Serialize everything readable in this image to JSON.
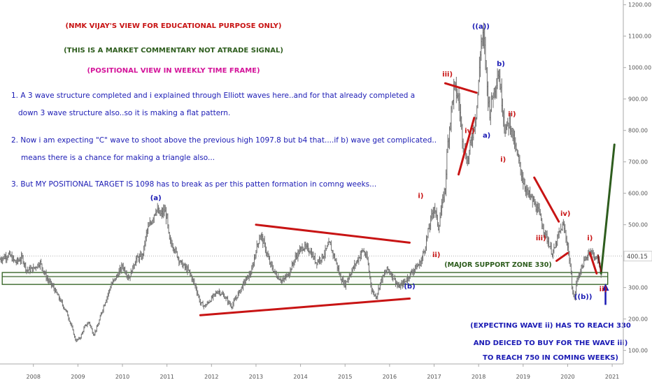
{
  "chart_data": {
    "type": "line",
    "y_axis": {
      "side": "right",
      "ticks": [
        100,
        200,
        300,
        400,
        500,
        600,
        700,
        800,
        900,
        1000,
        1100,
        1200
      ],
      "tick_labels": [
        "100.00",
        "200.00",
        "300.00",
        "400.00",
        "500.00",
        "600.00",
        "700.00",
        "800.00",
        "900.00",
        "1000.00",
        "1100.00",
        "1200.00"
      ],
      "ylim": [
        57,
        1215
      ]
    },
    "x_axis": {
      "ticks": [
        2008,
        2009,
        2010,
        2011,
        2012,
        2013,
        2014,
        2015,
        2016,
        2017,
        2018,
        2019,
        2020,
        2021
      ],
      "tick_labels": [
        "2008",
        "2009",
        "2010",
        "2011",
        "2012",
        "2013",
        "2014",
        "2015",
        "2016",
        "2017",
        "2018",
        "2019",
        "2020",
        "2021"
      ],
      "xlim": [
        2007.25,
        2021.25
      ]
    },
    "last_price": {
      "label": "400.15",
      "value": 400.15,
      "color": "#444444"
    },
    "series": [
      {
        "style": "weekly price (bar)",
        "color": "#6f6f6f",
        "points": [
          [
            2007.25,
            390
          ],
          [
            2007.45,
            405
          ],
          [
            2007.6,
            380
          ],
          [
            2007.75,
            395
          ],
          [
            2007.85,
            355
          ],
          [
            2008.0,
            360
          ],
          [
            2008.15,
            380
          ],
          [
            2008.3,
            330
          ],
          [
            2008.45,
            300
          ],
          [
            2008.6,
            260
          ],
          [
            2008.75,
            220
          ],
          [
            2008.85,
            180
          ],
          [
            2008.95,
            130
          ],
          [
            2009.05,
            140
          ],
          [
            2009.15,
            175
          ],
          [
            2009.25,
            190
          ],
          [
            2009.35,
            150
          ],
          [
            2009.45,
            180
          ],
          [
            2009.55,
            230
          ],
          [
            2009.65,
            270
          ],
          [
            2009.75,
            310
          ],
          [
            2009.85,
            330
          ],
          [
            2010.0,
            370
          ],
          [
            2010.15,
            330
          ],
          [
            2010.3,
            390
          ],
          [
            2010.45,
            400
          ],
          [
            2010.55,
            480
          ],
          [
            2010.65,
            510
          ],
          [
            2010.75,
            550
          ],
          [
            2010.85,
            530
          ],
          [
            2010.95,
            545
          ],
          [
            2011.0,
            520
          ],
          [
            2011.05,
            450
          ],
          [
            2011.15,
            430
          ],
          [
            2011.3,
            380
          ],
          [
            2011.5,
            350
          ],
          [
            2011.65,
            300
          ],
          [
            2011.75,
            250
          ],
          [
            2011.85,
            240
          ],
          [
            2012.0,
            265
          ],
          [
            2012.15,
            290
          ],
          [
            2012.3,
            270
          ],
          [
            2012.45,
            240
          ],
          [
            2012.6,
            280
          ],
          [
            2012.75,
            320
          ],
          [
            2012.9,
            350
          ],
          [
            2013.0,
            420
          ],
          [
            2013.1,
            470
          ],
          [
            2013.2,
            430
          ],
          [
            2013.3,
            380
          ],
          [
            2013.45,
            340
          ],
          [
            2013.6,
            320
          ],
          [
            2013.75,
            350
          ],
          [
            2013.9,
            400
          ],
          [
            2014.05,
            430
          ],
          [
            2014.2,
            420
          ],
          [
            2014.35,
            380
          ],
          [
            2014.5,
            400
          ],
          [
            2014.65,
            440
          ],
          [
            2014.8,
            380
          ],
          [
            2014.9,
            330
          ],
          [
            2015.0,
            310
          ],
          [
            2015.1,
            340
          ],
          [
            2015.25,
            380
          ],
          [
            2015.4,
            420
          ],
          [
            2015.5,
            390
          ],
          [
            2015.6,
            290
          ],
          [
            2015.7,
            270
          ],
          [
            2015.8,
            320
          ],
          [
            2015.95,
            360
          ],
          [
            2016.1,
            330
          ],
          [
            2016.2,
            300
          ],
          [
            2016.35,
            320
          ],
          [
            2016.5,
            350
          ],
          [
            2016.6,
            365
          ],
          [
            2016.7,
            380
          ],
          [
            2016.8,
            430
          ],
          [
            2016.9,
            500
          ],
          [
            2017.0,
            560
          ],
          [
            2017.1,
            490
          ],
          [
            2017.15,
            540
          ],
          [
            2017.25,
            620
          ],
          [
            2017.3,
            750
          ],
          [
            2017.4,
            880
          ],
          [
            2017.45,
            940
          ],
          [
            2017.55,
            900
          ],
          [
            2017.65,
            760
          ],
          [
            2017.75,
            700
          ],
          [
            2017.85,
            780
          ],
          [
            2017.95,
            860
          ],
          [
            2018.0,
            950
          ],
          [
            2018.05,
            1080
          ],
          [
            2018.1,
            1097
          ],
          [
            2018.15,
            1040
          ],
          [
            2018.2,
            920
          ],
          [
            2018.25,
            860
          ],
          [
            2018.3,
            900
          ],
          [
            2018.4,
            960
          ],
          [
            2018.45,
            990
          ],
          [
            2018.5,
            920
          ],
          [
            2018.6,
            800
          ],
          [
            2018.7,
            830
          ],
          [
            2018.8,
            760
          ],
          [
            2018.9,
            700
          ],
          [
            2019.0,
            640
          ],
          [
            2019.1,
            600
          ],
          [
            2019.2,
            580
          ],
          [
            2019.35,
            540
          ],
          [
            2019.45,
            490
          ],
          [
            2019.55,
            450
          ],
          [
            2019.65,
            410
          ],
          [
            2019.7,
            420
          ],
          [
            2019.8,
            470
          ],
          [
            2019.9,
            500
          ],
          [
            2019.95,
            470
          ],
          [
            2020.0,
            430
          ],
          [
            2020.05,
            380
          ],
          [
            2020.1,
            300
          ],
          [
            2020.15,
            260
          ],
          [
            2020.2,
            320
          ],
          [
            2020.3,
            360
          ],
          [
            2020.4,
            390
          ],
          [
            2020.5,
            420
          ],
          [
            2020.6,
            400
          ],
          [
            2020.7,
            380
          ],
          [
            2020.75,
            345
          ]
        ]
      },
      {
        "style": "projection",
        "color": "#2e5d1e",
        "points": [
          [
            2020.75,
            345
          ],
          [
            2021.05,
            755
          ]
        ]
      },
      {
        "style": "pattern line",
        "color": "#c81414",
        "segments": [
          [
            [
              2013.0,
              500
            ],
            [
              2016.45,
              443
            ]
          ],
          [
            [
              2011.75,
              212
            ],
            [
              2016.45,
              265
            ]
          ],
          [
            [
              2017.25,
              950
            ],
            [
              2017.95,
              920
            ]
          ],
          [
            [
              2017.55,
              660
            ],
            [
              2017.9,
              840
            ]
          ],
          [
            [
              2019.25,
              650
            ],
            [
              2019.8,
              510
            ]
          ],
          [
            [
              2019.75,
              385
            ],
            [
              2020.0,
              410
            ]
          ],
          [
            [
              2020.5,
              410
            ],
            [
              2020.65,
              345
            ]
          ]
        ]
      }
    ],
    "support_zone": {
      "label": "(MAJOR SUPPORT ZONE 330)",
      "low": 310,
      "high": 348,
      "color": "#2e5d1e",
      "from": 2007.3,
      "to": 2020.9
    },
    "wave_labels": [
      {
        "text": "(a)",
        "x": 2010.75,
        "y": 578,
        "color": "#1a1ab4"
      },
      {
        "text": "(b)",
        "x": 2016.45,
        "y": 297,
        "color": "#1a1ab4"
      },
      {
        "text": "((a))",
        "x": 2018.05,
        "y": 1124,
        "color": "#1a1ab4"
      },
      {
        "text": "((b))",
        "x": 2020.35,
        "y": 264,
        "color": "#1a1ab4"
      },
      {
        "text": "b)",
        "x": 2018.5,
        "y": 1005,
        "color": "#1a1ab4"
      },
      {
        "text": "a)",
        "x": 2018.18,
        "y": 777,
        "color": "#1a1ab4"
      },
      {
        "text": "iii)",
        "x": 2017.3,
        "y": 972,
        "color": "#c81414"
      },
      {
        "text": "iv)",
        "x": 2017.8,
        "y": 792,
        "color": "#c81414"
      },
      {
        "text": "i)",
        "x": 2016.7,
        "y": 585,
        "color": "#c81414"
      },
      {
        "text": "ii)",
        "x": 2017.05,
        "y": 397,
        "color": "#c81414"
      },
      {
        "text": "ii)",
        "x": 2018.75,
        "y": 845,
        "color": "#c81414"
      },
      {
        "text": "i)",
        "x": 2018.55,
        "y": 700,
        "color": "#c81414"
      },
      {
        "text": "iii)",
        "x": 2019.4,
        "y": 450,
        "color": "#c81414"
      },
      {
        "text": "iv)",
        "x": 2019.95,
        "y": 528,
        "color": "#c81414"
      },
      {
        "text": "i)",
        "x": 2020.5,
        "y": 450,
        "color": "#c81414"
      },
      {
        "text": "ii)",
        "x": 2020.8,
        "y": 288,
        "color": "#c81414"
      }
    ],
    "annotations": [
      {
        "text": "(NMK VIJAY'S VIEW FOR EDUCATIONAL PURPOSE ONLY)",
        "color": "#c81414",
        "role": "heading"
      },
      {
        "text": "(THIS IS A MARKET COMMENTARY NOT ATRADE SIGNAL)",
        "color": "#2e5d1e",
        "role": "heading"
      },
      {
        "text": "(POSITIONAL VIEW IN WEEKLY TIME FRAME)",
        "color": "#d4149a",
        "role": "heading"
      },
      {
        "text": "1. A 3 wave structure completed and i explained through Elliott waves here..and for that already completed a",
        "color": "#1a1ab4",
        "role": "body"
      },
      {
        "text": "down 3 wave structure also..so it is making a flat pattern.",
        "color": "#1a1ab4",
        "role": "body"
      },
      {
        "text": "2. Now i am expecting \"C\" wave to shoot above the previous high 1097.8 but b4 that....if  b) wave get complicated..",
        "color": "#1a1ab4",
        "role": "body"
      },
      {
        "text": "means there is a chance for making a triangle also...",
        "color": "#1a1ab4",
        "role": "body"
      },
      {
        "text": "3. But MY POSITIONAL TARGET IS 1098 has to break as per this patten formation in comng weeks...",
        "color": "#1a1ab4",
        "role": "body"
      },
      {
        "text": "(EXPECTING WAVE ii) HAS TO REACH 330",
        "color": "#1a1ab4",
        "role": "note"
      },
      {
        "text": "AND DEICED TO BUY FOR THE WAVE iii)",
        "color": "#1a1ab4",
        "role": "note"
      },
      {
        "text": "TO REACH 750 IN COMING WEEKS)",
        "color": "#1a1ab4",
        "role": "note"
      }
    ],
    "arrow": {
      "color": "#1a1ab4",
      "direction": "up",
      "x": 2020.85,
      "from": 245,
      "to": 308
    },
    "grid": false,
    "colors": {
      "axis_text": "#555555",
      "axis_line": "#aaaaaa",
      "last_price_line": "#999999"
    }
  }
}
